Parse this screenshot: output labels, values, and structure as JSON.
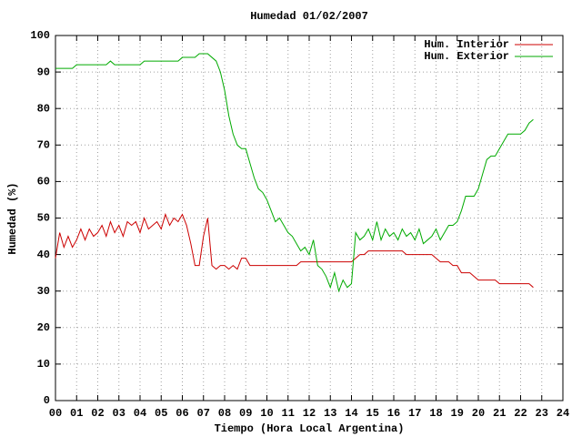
{
  "chart_data": {
    "type": "line",
    "title": "Humedad 01/02/2007",
    "xlabel": "Tiempo (Hora Local Argentina)",
    "ylabel": "Humedad (%)",
    "xlim": [
      0,
      24
    ],
    "ylim": [
      0,
      100
    ],
    "xticks": [
      {
        "value": 0,
        "label": "00"
      },
      {
        "value": 1,
        "label": "01"
      },
      {
        "value": 2,
        "label": "02"
      },
      {
        "value": 3,
        "label": "03"
      },
      {
        "value": 4,
        "label": "04"
      },
      {
        "value": 5,
        "label": "05"
      },
      {
        "value": 6,
        "label": "06"
      },
      {
        "value": 7,
        "label": "07"
      },
      {
        "value": 8,
        "label": "08"
      },
      {
        "value": 9,
        "label": "09"
      },
      10,
      11,
      12,
      13,
      14,
      15,
      16,
      17,
      18,
      19,
      20,
      21,
      22,
      23,
      24
    ],
    "yticks": [
      0,
      10,
      20,
      30,
      40,
      50,
      60,
      70,
      80,
      90,
      100
    ],
    "grid": true,
    "legend": "top-right",
    "x": [
      0,
      0.2,
      0.4,
      0.6,
      0.8,
      1,
      1.2,
      1.4,
      1.6,
      1.8,
      2,
      2.2,
      2.4,
      2.6,
      2.8,
      3,
      3.2,
      3.4,
      3.6,
      3.8,
      4,
      4.2,
      4.4,
      4.6,
      4.8,
      5,
      5.2,
      5.4,
      5.6,
      5.8,
      6,
      6.2,
      6.4,
      6.6,
      6.8,
      7,
      7.2,
      7.4,
      7.6,
      7.8,
      8,
      8.2,
      8.4,
      8.6,
      8.8,
      9,
      9.2,
      9.4,
      9.6,
      9.8,
      10,
      10.2,
      10.4,
      10.6,
      10.8,
      11,
      11.2,
      11.4,
      11.6,
      11.8,
      12,
      12.2,
      12.4,
      12.6,
      12.8,
      13,
      13.2,
      13.4,
      13.6,
      13.8,
      14,
      14.2,
      14.4,
      14.6,
      14.8,
      15,
      15.2,
      15.4,
      15.6,
      15.8,
      16,
      16.2,
      16.4,
      16.6,
      16.8,
      17,
      17.2,
      17.4,
      17.6,
      17.8,
      18,
      18.2,
      18.4,
      18.6,
      18.8,
      19,
      19.2,
      19.4,
      19.6,
      19.8,
      20,
      20.2,
      20.4,
      20.6,
      20.8,
      21,
      21.2,
      21.4,
      21.6,
      21.8,
      22,
      22.2,
      22.4,
      22.6
    ],
    "series": [
      {
        "name": "Hum. Interior",
        "color": "#cc0000",
        "values": [
          39,
          46,
          42,
          45,
          42,
          44,
          47,
          44,
          47,
          45,
          46,
          48,
          45,
          49,
          46,
          48,
          45,
          49,
          48,
          49,
          46,
          50,
          47,
          48,
          49,
          47,
          51,
          48,
          50,
          49,
          51,
          48,
          43,
          37,
          37,
          45,
          50,
          37,
          36,
          37,
          37,
          36,
          37,
          36,
          39,
          39,
          37,
          37,
          37,
          37,
          37,
          37,
          37,
          37,
          37,
          37,
          37,
          37,
          38,
          38,
          38,
          38,
          38,
          38,
          38,
          38,
          38,
          38,
          38,
          38,
          38,
          39,
          40,
          40,
          41,
          41,
          41,
          41,
          41,
          41,
          41,
          41,
          41,
          40,
          40,
          40,
          40,
          40,
          40,
          40,
          39,
          38,
          38,
          38,
          37,
          37,
          35,
          35,
          35,
          34,
          33,
          33,
          33,
          33,
          33,
          32,
          32,
          32,
          32,
          32,
          32,
          32,
          32,
          31
        ]
      },
      {
        "name": "Hum. Exterior",
        "color": "#00aa00",
        "values": [
          91,
          91,
          91,
          91,
          91,
          92,
          92,
          92,
          92,
          92,
          92,
          92,
          92,
          93,
          92,
          92,
          92,
          92,
          92,
          92,
          92,
          93,
          93,
          93,
          93,
          93,
          93,
          93,
          93,
          93,
          94,
          94,
          94,
          94,
          95,
          95,
          95,
          94,
          93,
          90,
          85,
          78,
          73,
          70,
          69,
          69,
          65,
          61,
          58,
          57,
          55,
          52,
          49,
          50,
          48,
          46,
          45,
          43,
          41,
          42,
          40,
          44,
          37,
          36,
          34,
          31,
          35,
          30,
          33,
          31,
          32,
          46,
          44,
          45,
          47,
          44,
          49,
          44,
          47,
          45,
          46,
          44,
          47,
          45,
          46,
          44,
          47,
          43,
          44,
          45,
          47,
          44,
          46,
          48,
          48,
          49,
          52,
          56,
          56,
          56,
          58,
          62,
          66,
          67,
          67,
          69,
          71,
          73,
          73,
          73,
          73,
          74,
          76,
          77
        ]
      }
    ]
  }
}
